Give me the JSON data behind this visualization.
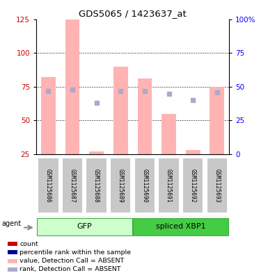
{
  "title": "GDS5065 / 1423637_at",
  "samples": [
    "GSM1125686",
    "GSM1125687",
    "GSM1125688",
    "GSM1125689",
    "GSM1125690",
    "GSM1125691",
    "GSM1125692",
    "GSM1125693"
  ],
  "bar_values": [
    82,
    125,
    27,
    90,
    81,
    55,
    28,
    75
  ],
  "rank_values": [
    47,
    48,
    38,
    47,
    47,
    45,
    40,
    46
  ],
  "ylim_left": [
    25,
    125
  ],
  "ylim_right": [
    0,
    100
  ],
  "yticks_left": [
    25,
    50,
    75,
    100,
    125
  ],
  "ytick_labels_right": [
    "0",
    "25",
    "50",
    "75",
    "100%"
  ],
  "bar_color": "#FFB3B3",
  "rank_color": "#AAAACC",
  "count_color": "#CC0000",
  "percentile_color": "#000099",
  "group_colors": [
    "#CCFFCC",
    "#44CC44"
  ],
  "group_labels": [
    "GFP",
    "spliced XBP1"
  ],
  "agent_label": "agent",
  "dotted_lines": [
    50,
    75,
    100
  ],
  "legend_items": [
    {
      "color": "#CC0000",
      "label": "count"
    },
    {
      "color": "#000099",
      "label": "percentile rank within the sample"
    },
    {
      "color": "#FFB3B3",
      "label": "value, Detection Call = ABSENT"
    },
    {
      "color": "#AAAACC",
      "label": "rank, Detection Call = ABSENT"
    }
  ]
}
